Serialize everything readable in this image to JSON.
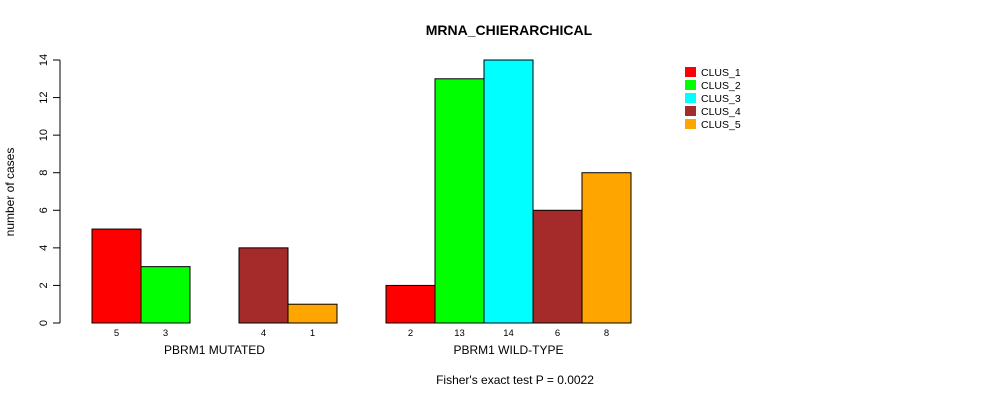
{
  "chart_data": {
    "type": "bar",
    "title": "MRNA_CHIERARCHICAL",
    "ylabel": "number of cases",
    "footnote": "Fisher's exact test P = 0.0022",
    "ylim": [
      0,
      14
    ],
    "yticks": [
      0,
      2,
      4,
      6,
      8,
      10,
      12,
      14
    ],
    "groups": [
      "PBRM1 MUTATED",
      "PBRM1 WILD-TYPE"
    ],
    "series": [
      {
        "name": "CLUS_1",
        "color": "#ff0000",
        "values": [
          5,
          2
        ]
      },
      {
        "name": "CLUS_2",
        "color": "#00ff00",
        "values": [
          3,
          13
        ]
      },
      {
        "name": "CLUS_3",
        "color": "#00ffff",
        "values": [
          0,
          14
        ]
      },
      {
        "name": "CLUS_4",
        "color": "#a52a2a",
        "values": [
          4,
          6
        ]
      },
      {
        "name": "CLUS_5",
        "color": "#ffa500",
        "values": [
          1,
          8
        ]
      }
    ],
    "counts": [
      [
        "5",
        "3",
        "",
        "4",
        "1"
      ],
      [
        "2",
        "13",
        "14",
        "6",
        "8"
      ]
    ],
    "legend_position": "top-right",
    "grid": false
  }
}
